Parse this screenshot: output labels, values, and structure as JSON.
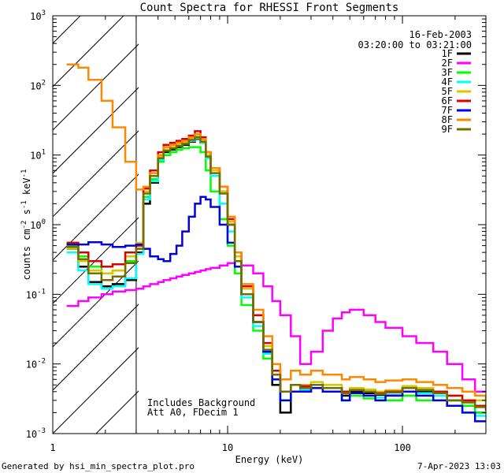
{
  "chart_data": {
    "type": "line",
    "title": "Count Spectra for RHESSI Front Segments",
    "xlabel": "Energy (keV)",
    "ylabel_main": "counts cm",
    "ylabel_exp1": "-2",
    "ylabel_mid1": " s",
    "ylabel_exp2": "-1",
    "ylabel_mid2": " keV",
    "ylabel_exp3": "-1",
    "xlim": [
      1,
      300
    ],
    "ylim": [
      0.001,
      1000
    ],
    "xscale": "log",
    "yscale": "log",
    "x_ticks": [
      {
        "value": 1,
        "label": "1"
      },
      {
        "value": 10,
        "label": "10"
      },
      {
        "value": 100,
        "label": "100"
      }
    ],
    "y_ticks": [
      {
        "value": 0.001,
        "base": "10",
        "exp": "-3"
      },
      {
        "value": 0.01,
        "base": "10",
        "exp": "-2"
      },
      {
        "value": 0.1,
        "base": "10",
        "exp": "-1"
      },
      {
        "value": 1,
        "base": "10",
        "exp": "0"
      },
      {
        "value": 10,
        "base": "10",
        "exp": "1"
      },
      {
        "value": 100,
        "base": "10",
        "exp": "2"
      },
      {
        "value": 1000,
        "base": "10",
        "exp": "3"
      }
    ],
    "date": "16-Feb-2003",
    "time_range": "03:20:00 to 03:21:00",
    "annotations": [
      "Includes Background",
      "Att A0, FDecim 1"
    ],
    "shaded_region_kev": [
      1,
      3
    ],
    "energy_bins": [
      1.2,
      1.4,
      1.6,
      1.9,
      2.2,
      2.6,
      3.0,
      3.3,
      3.6,
      4.0,
      4.3,
      4.7,
      5.1,
      5.5,
      6.0,
      6.5,
      7.0,
      7.5,
      8.0,
      9.0,
      10.0,
      11.0,
      12.0,
      14.0,
      16.0,
      18.0,
      20.0,
      23.0,
      26.0,
      30.0,
      35.0,
      40.0,
      45.0,
      50.0,
      60.0,
      70.0,
      80.0,
      100.0,
      120.0,
      150.0,
      180.0,
      220.0,
      260.0,
      300.0
    ],
    "series": [
      {
        "name": "1F",
        "color": "#000000",
        "values": [
          0.45,
          0.25,
          0.15,
          0.13,
          0.14,
          0.16,
          0.4,
          2.0,
          4.0,
          8.0,
          11.0,
          12.0,
          13.0,
          14.0,
          15.5,
          17.0,
          15.0,
          10.0,
          6.0,
          3.0,
          1.0,
          0.3,
          0.1,
          0.04,
          0.015,
          0.005,
          0.002,
          0.005,
          0.004,
          0.005,
          0.004,
          0.004,
          0.0035,
          0.004,
          0.0038,
          0.0036,
          0.004,
          0.0045,
          0.004,
          0.004,
          0.003,
          0.003,
          0.002,
          0.002
        ]
      },
      {
        "name": "2F",
        "color": "#ff00ff",
        "values": [
          0.068,
          0.08,
          0.09,
          0.1,
          0.11,
          0.115,
          0.12,
          0.13,
          0.14,
          0.15,
          0.16,
          0.17,
          0.18,
          0.19,
          0.2,
          0.21,
          0.22,
          0.23,
          0.24,
          0.26,
          0.28,
          0.3,
          0.26,
          0.2,
          0.13,
          0.08,
          0.05,
          0.025,
          0.01,
          0.015,
          0.03,
          0.045,
          0.055,
          0.06,
          0.05,
          0.04,
          0.033,
          0.025,
          0.02,
          0.015,
          0.01,
          0.006,
          0.004,
          0.004
        ]
      },
      {
        "name": "3F",
        "color": "#00ff00",
        "values": [
          0.5,
          0.35,
          0.25,
          0.2,
          0.22,
          0.3,
          0.45,
          2.5,
          4.5,
          8.0,
          10.0,
          11.0,
          12.0,
          12.5,
          13.0,
          13.0,
          11.0,
          6.0,
          3.0,
          1.2,
          0.5,
          0.2,
          0.07,
          0.03,
          0.012,
          0.006,
          0.003,
          0.004,
          0.004,
          0.0045,
          0.004,
          0.004,
          0.003,
          0.0035,
          0.0032,
          0.003,
          0.003,
          0.0035,
          0.003,
          0.003,
          0.003,
          0.0025,
          0.002,
          0.002
        ]
      },
      {
        "name": "4F",
        "color": "#00ffff",
        "values": [
          0.4,
          0.22,
          0.14,
          0.12,
          0.13,
          0.17,
          0.38,
          2.3,
          4.2,
          8.5,
          11.5,
          12.5,
          13.5,
          14.5,
          16.0,
          17.5,
          15.0,
          9.0,
          5.0,
          2.0,
          0.8,
          0.25,
          0.09,
          0.035,
          0.014,
          0.006,
          0.003,
          0.004,
          0.0042,
          0.0045,
          0.004,
          0.004,
          0.003,
          0.0038,
          0.0035,
          0.0033,
          0.0036,
          0.004,
          0.0038,
          0.0035,
          0.0025,
          0.002,
          0.0018,
          0.0018
        ]
      },
      {
        "name": "5F",
        "color": "#d4c800",
        "values": [
          0.45,
          0.3,
          0.22,
          0.2,
          0.22,
          0.35,
          0.55,
          3.0,
          5.0,
          9.5,
          12.0,
          13.0,
          14.0,
          15.0,
          17.0,
          18.5,
          16.0,
          10.0,
          6.0,
          3.0,
          1.1,
          0.35,
          0.12,
          0.05,
          0.018,
          0.007,
          0.004,
          0.005,
          0.005,
          0.0055,
          0.005,
          0.005,
          0.004,
          0.0045,
          0.0043,
          0.004,
          0.0042,
          0.0048,
          0.0045,
          0.004,
          0.0035,
          0.003,
          0.003,
          0.0025
        ]
      },
      {
        "name": "6F",
        "color": "#dd0000",
        "values": [
          0.55,
          0.4,
          0.3,
          0.25,
          0.27,
          0.4,
          0.5,
          3.3,
          6.0,
          11.0,
          14.0,
          15.0,
          16.0,
          17.0,
          19.0,
          22.0,
          18.0,
          11.0,
          6.5,
          3.5,
          1.2,
          0.4,
          0.13,
          0.05,
          0.02,
          0.008,
          0.004,
          0.005,
          0.0048,
          0.005,
          0.0045,
          0.0045,
          0.004,
          0.0042,
          0.004,
          0.0038,
          0.004,
          0.0045,
          0.0042,
          0.004,
          0.0035,
          0.003,
          0.0025,
          0.0025
        ]
      },
      {
        "name": "7F",
        "color": "#0000dd",
        "values": [
          0.52,
          0.52,
          0.56,
          0.52,
          0.48,
          0.5,
          0.52,
          0.45,
          0.35,
          0.32,
          0.3,
          0.38,
          0.5,
          0.8,
          1.3,
          2.0,
          2.5,
          2.3,
          1.8,
          1.0,
          0.55,
          0.25,
          0.1,
          0.04,
          0.015,
          0.006,
          0.003,
          0.004,
          0.004,
          0.0045,
          0.004,
          0.004,
          0.003,
          0.0038,
          0.0035,
          0.003,
          0.0035,
          0.004,
          0.0035,
          0.003,
          0.0025,
          0.002,
          0.0015,
          0.0015
        ]
      },
      {
        "name": "8F",
        "color": "#ff8800",
        "values": [
          200.0,
          180.0,
          120.0,
          60.0,
          25.0,
          8.0,
          3.2,
          3.5,
          5.5,
          10.0,
          13.0,
          14.0,
          15.0,
          16.0,
          18.0,
          20.0,
          17.0,
          11.0,
          6.5,
          3.5,
          1.3,
          0.4,
          0.14,
          0.06,
          0.025,
          0.01,
          0.006,
          0.008,
          0.007,
          0.008,
          0.007,
          0.007,
          0.006,
          0.0065,
          0.006,
          0.0055,
          0.0058,
          0.006,
          0.0055,
          0.005,
          0.0045,
          0.004,
          0.0035,
          0.003
        ]
      },
      {
        "name": "9F",
        "color": "#707000",
        "values": [
          0.48,
          0.32,
          0.2,
          0.16,
          0.18,
          0.28,
          0.45,
          2.8,
          5.0,
          9.0,
          11.5,
          12.5,
          13.5,
          14.5,
          16.5,
          18.0,
          15.5,
          9.5,
          5.5,
          2.8,
          1.0,
          0.3,
          0.1,
          0.04,
          0.016,
          0.007,
          0.004,
          0.005,
          0.0045,
          0.005,
          0.0045,
          0.0045,
          0.0038,
          0.0042,
          0.004,
          0.0037,
          0.0039,
          0.0045,
          0.0042,
          0.0038,
          0.003,
          0.0028,
          0.0024,
          0.0022
        ]
      }
    ]
  },
  "footer": {
    "generated_by": "Generated by hsi_min_spectra_plot.pro",
    "timestamp": "7-Apr-2023 13:03"
  }
}
